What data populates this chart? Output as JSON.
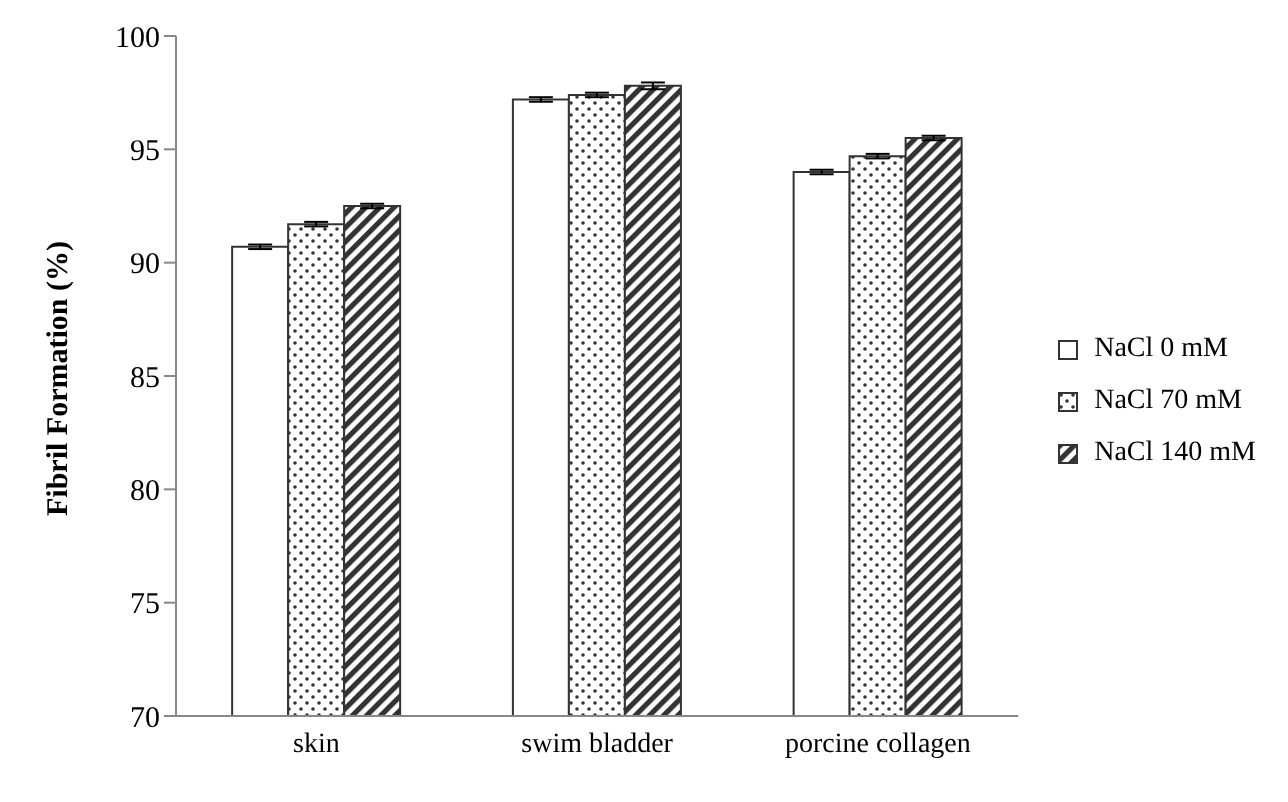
{
  "chart_data": {
    "type": "bar",
    "ylabel": "Fibril Formation (%)",
    "categories": [
      "skin",
      "swim bladder",
      "porcine collagen"
    ],
    "series": [
      {
        "name": "NaCl 0 mM",
        "color": "#ffffff",
        "values": [
          90.7,
          97.2,
          94.0
        ],
        "errors": [
          0.1,
          0.1,
          0.1
        ]
      },
      {
        "name": "NaCl 70 mM",
        "color": "#333333",
        "values": [
          91.7,
          97.4,
          94.7
        ],
        "errors": [
          0.1,
          0.1,
          0.1
        ]
      },
      {
        "name": "NaCl 140 mM",
        "color": "#333333",
        "values": [
          92.5,
          97.8,
          95.5
        ],
        "errors": [
          0.1,
          0.15,
          0.1
        ]
      }
    ],
    "ylim": [
      70,
      100
    ],
    "yticks": [
      70,
      75,
      80,
      85,
      90,
      95,
      100
    ],
    "grid": false,
    "legend": "right"
  }
}
